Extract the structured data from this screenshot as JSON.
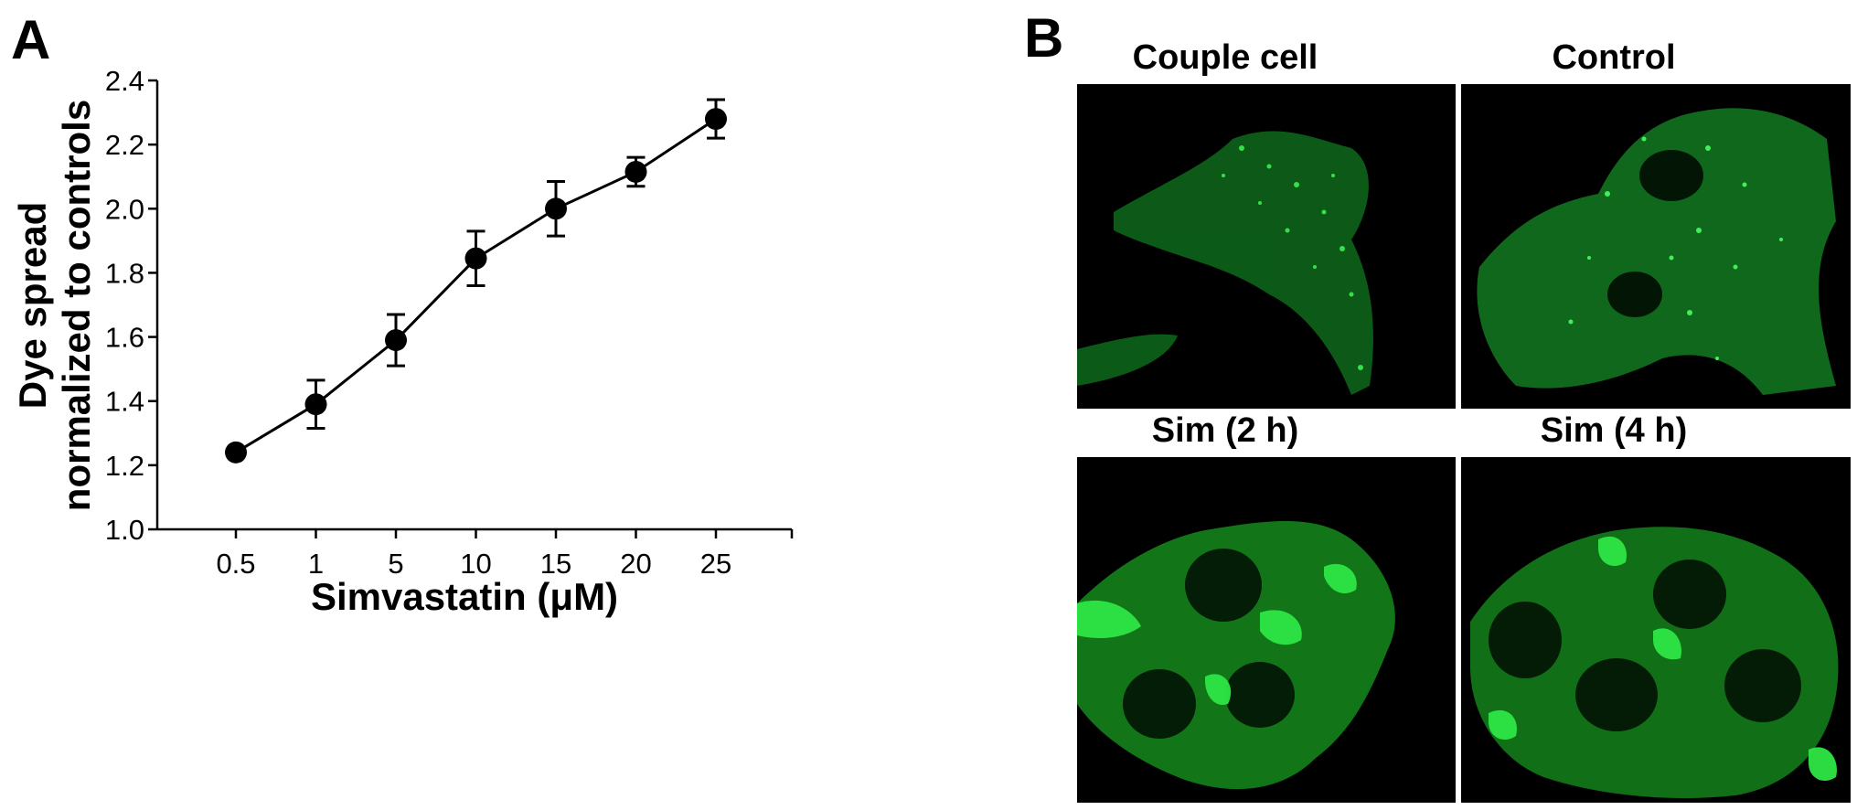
{
  "panels": {
    "a_letter": "A",
    "b_letter": "B"
  },
  "chart_data": {
    "type": "line",
    "xlabel": "Simvastatin (μM)",
    "ylabel_lines": [
      "Dye spread",
      "normalized to controls"
    ],
    "categories": [
      "0.5",
      "1",
      "5",
      "10",
      "15",
      "20",
      "25"
    ],
    "values": [
      1.24,
      1.39,
      1.59,
      1.845,
      2.0,
      2.115,
      2.28
    ],
    "errors": [
      0.0,
      0.075,
      0.08,
      0.085,
      0.085,
      0.045,
      0.06
    ],
    "ylim": [
      1.0,
      2.4
    ],
    "yticks": [
      "1.0",
      "1.2",
      "1.4",
      "1.6",
      "1.8",
      "2.0",
      "2.2",
      "2.4"
    ],
    "grid": false,
    "marker": "filled-circle",
    "color": "#000000"
  },
  "micrographs": {
    "top_left_title": "Couple cell",
    "top_right_title": "Control",
    "bottom_left_title": "Sim (2 h)",
    "bottom_right_title": "Sim (4 h)",
    "stain_color": "#1fd23c"
  }
}
